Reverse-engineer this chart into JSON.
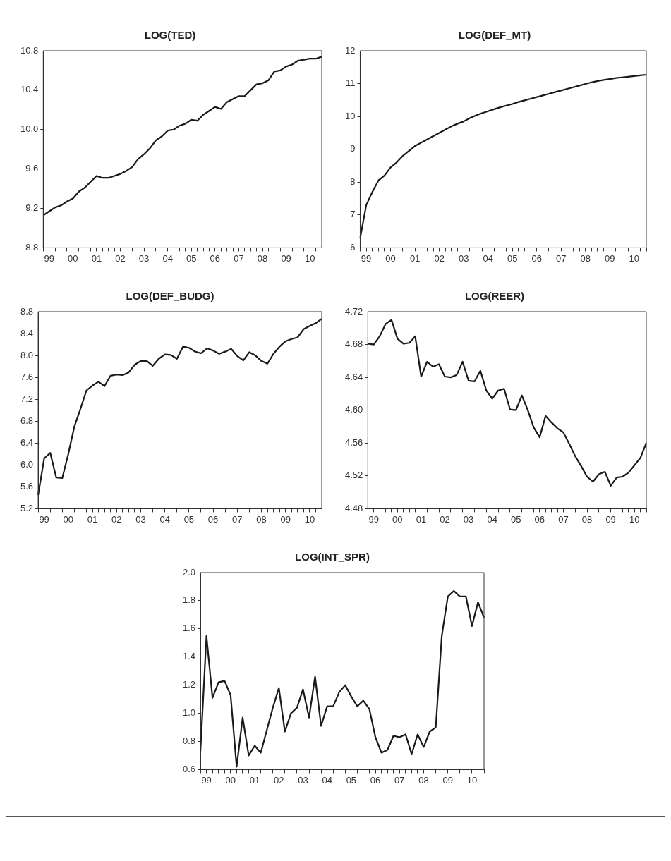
{
  "chart_data": [
    {
      "type": "line",
      "title": "LOG(TED)",
      "categories": [
        null,
        "99",
        null,
        null,
        null,
        "00",
        null,
        null,
        null,
        "01",
        null,
        null,
        null,
        "02",
        null,
        null,
        null,
        "03",
        null,
        null,
        null,
        "04",
        null,
        null,
        null,
        "05",
        null,
        null,
        null,
        "06",
        null,
        null,
        null,
        "07",
        null,
        null,
        null,
        "08",
        null,
        null,
        null,
        "09",
        null,
        null,
        null,
        "10",
        null,
        null
      ],
      "series": [
        {
          "color": "#1a1a1a",
          "values": [
            9.13,
            9.17,
            9.21,
            9.23,
            9.27,
            9.3,
            9.37,
            9.41,
            9.47,
            9.53,
            9.51,
            9.51,
            9.53,
            9.55,
            9.58,
            9.62,
            9.7,
            9.75,
            9.81,
            9.89,
            9.93,
            9.99,
            10.0,
            10.04,
            10.06,
            10.1,
            10.09,
            10.15,
            10.19,
            10.23,
            10.21,
            10.28,
            10.31,
            10.34,
            10.34,
            10.4,
            10.46,
            10.47,
            10.5,
            10.59,
            10.6,
            10.64,
            10.66,
            10.7,
            10.71,
            10.72,
            10.72,
            10.74
          ]
        }
      ],
      "ylim": [
        8.8,
        10.8
      ],
      "yticks": [
        8.8,
        9.2,
        9.6,
        {
          "value": 10,
          "label": "10.0"
        },
        10.4,
        10.8
      ],
      "grid": false,
      "legend": false,
      "marker": "none",
      "line_style": "solid"
    },
    {
      "type": "line",
      "title": "LOG(DEF_MT)",
      "categories": [
        null,
        "99",
        null,
        null,
        null,
        "00",
        null,
        null,
        null,
        "01",
        null,
        null,
        null,
        "02",
        null,
        null,
        null,
        "03",
        null,
        null,
        null,
        "04",
        null,
        null,
        null,
        "05",
        null,
        null,
        null,
        "06",
        null,
        null,
        null,
        "07",
        null,
        null,
        null,
        "08",
        null,
        null,
        null,
        "09",
        null,
        null,
        null,
        "10",
        null,
        null
      ],
      "series": [
        {
          "color": "#1a1a1a",
          "values": [
            6.3,
            7.3,
            7.7,
            8.05,
            8.2,
            8.45,
            8.6,
            8.8,
            8.95,
            9.1,
            9.2,
            9.3,
            9.4,
            9.5,
            9.6,
            9.7,
            9.78,
            9.85,
            9.95,
            10.03,
            10.1,
            10.16,
            10.22,
            10.28,
            10.33,
            10.38,
            10.44,
            10.49,
            10.54,
            10.59,
            10.64,
            10.69,
            10.74,
            10.79,
            10.84,
            10.89,
            10.94,
            10.99,
            11.04,
            11.08,
            11.11,
            11.14,
            11.17,
            11.19,
            11.21,
            11.23,
            11.25,
            11.27
          ]
        }
      ],
      "ylim": [
        6,
        12
      ],
      "yticks": [
        6,
        7,
        8,
        9,
        10,
        11,
        12
      ],
      "grid": false,
      "legend": false,
      "marker": "none",
      "line_style": "solid"
    },
    {
      "type": "line",
      "title": "LOG(DEF_BUDG)",
      "categories": [
        null,
        "99",
        null,
        null,
        null,
        "00",
        null,
        null,
        null,
        "01",
        null,
        null,
        null,
        "02",
        null,
        null,
        null,
        "03",
        null,
        null,
        null,
        "04",
        null,
        null,
        null,
        "05",
        null,
        null,
        null,
        "06",
        null,
        null,
        null,
        "07",
        null,
        null,
        null,
        "08",
        null,
        null,
        null,
        "09",
        null,
        null,
        null,
        "10",
        null,
        null
      ],
      "series": [
        {
          "color": "#1a1a1a",
          "values": [
            5.45,
            6.12,
            6.22,
            5.77,
            5.76,
            6.2,
            6.7,
            7.02,
            7.36,
            7.45,
            7.52,
            7.44,
            7.63,
            7.65,
            7.64,
            7.69,
            7.83,
            7.9,
            7.9,
            7.81,
            7.94,
            8.02,
            8.01,
            7.94,
            8.16,
            8.14,
            8.07,
            8.04,
            8.13,
            8.09,
            8.03,
            8.07,
            8.12,
            7.99,
            7.91,
            8.06,
            8.0,
            7.9,
            7.85,
            8.03,
            8.16,
            8.26,
            8.3,
            8.33,
            8.48,
            8.54,
            8.59,
            8.67
          ]
        }
      ],
      "ylim": [
        5.2,
        8.8
      ],
      "yticks": [
        5.2,
        5.6,
        {
          "value": 6,
          "label": "6.0"
        },
        6.4,
        6.8,
        7.2,
        7.6,
        {
          "value": 8,
          "label": "8.0"
        },
        8.4,
        8.8
      ],
      "grid": false,
      "legend": false,
      "marker": "none",
      "line_style": "solid"
    },
    {
      "type": "line",
      "title": "LOG(REER)",
      "categories": [
        null,
        "99",
        null,
        null,
        null,
        "00",
        null,
        null,
        null,
        "01",
        null,
        null,
        null,
        "02",
        null,
        null,
        null,
        "03",
        null,
        null,
        null,
        "04",
        null,
        null,
        null,
        "05",
        null,
        null,
        null,
        "06",
        null,
        null,
        null,
        "07",
        null,
        null,
        null,
        "08",
        null,
        null,
        null,
        "09",
        null,
        null,
        null,
        "10",
        null,
        null
      ],
      "series": [
        {
          "color": "#1a1a1a",
          "values": [
            4.681,
            4.68,
            4.69,
            4.705,
            4.71,
            4.687,
            4.681,
            4.682,
            4.69,
            4.641,
            4.659,
            4.653,
            4.656,
            4.641,
            4.64,
            4.643,
            4.659,
            4.636,
            4.635,
            4.648,
            4.624,
            4.614,
            4.624,
            4.626,
            4.601,
            4.6,
            4.618,
            4.6,
            4.579,
            4.567,
            4.593,
            4.585,
            4.578,
            4.573,
            4.559,
            4.544,
            4.532,
            4.519,
            4.513,
            4.522,
            4.525,
            4.508,
            4.518,
            4.519,
            4.524,
            4.533,
            4.542,
            4.56
          ]
        }
      ],
      "ylim": [
        4.48,
        4.72
      ],
      "yticks": [
        4.48,
        4.52,
        4.56,
        {
          "value": 4.6,
          "label": "4.60"
        },
        4.64,
        4.68,
        4.72
      ],
      "grid": false,
      "legend": false,
      "marker": "none",
      "line_style": "solid"
    },
    {
      "type": "line",
      "title": "LOG(INT_SPR)",
      "categories": [
        null,
        "99",
        null,
        null,
        null,
        "00",
        null,
        null,
        null,
        "01",
        null,
        null,
        null,
        "02",
        null,
        null,
        null,
        "03",
        null,
        null,
        null,
        "04",
        null,
        null,
        null,
        "05",
        null,
        null,
        null,
        "06",
        null,
        null,
        null,
        "07",
        null,
        null,
        null,
        "08",
        null,
        null,
        null,
        "09",
        null,
        null,
        null,
        "10",
        null,
        null
      ],
      "series": [
        {
          "color": "#1a1a1a",
          "values": [
            0.73,
            1.55,
            1.11,
            1.22,
            1.23,
            1.13,
            0.62,
            0.97,
            0.7,
            0.77,
            0.72,
            0.88,
            1.04,
            1.18,
            0.87,
            1.0,
            1.04,
            1.17,
            0.97,
            1.26,
            0.91,
            1.05,
            1.05,
            1.15,
            1.2,
            1.12,
            1.05,
            1.09,
            1.03,
            0.83,
            0.72,
            0.74,
            0.84,
            0.83,
            0.85,
            0.71,
            0.85,
            0.76,
            0.87,
            0.9,
            1.55,
            1.83,
            1.87,
            1.83,
            1.83,
            1.62,
            1.79,
            1.68
          ]
        }
      ],
      "ylim": [
        0.6,
        2.0
      ],
      "yticks": [
        0.6,
        0.8,
        {
          "value": 1,
          "label": "1.0"
        },
        1.2,
        1.4,
        1.6,
        1.8,
        {
          "value": 2,
          "label": "2.0"
        }
      ],
      "grid": false,
      "legend": false,
      "marker": "none",
      "line_style": "solid"
    }
  ]
}
